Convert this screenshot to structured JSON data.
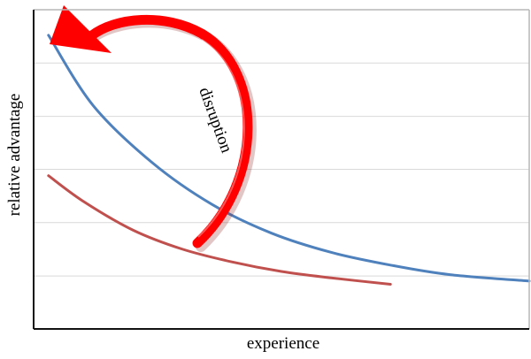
{
  "chart_data": {
    "type": "line",
    "xlabel": "experience",
    "ylabel": "relative advantage",
    "grid": true,
    "gridlines_y": [
      0.0,
      0.166,
      0.333,
      0.5,
      0.666,
      0.833,
      1.0
    ],
    "series": [
      {
        "color": "#4f81bd",
        "points": [
          [
            0.03,
            0.92
          ],
          [
            0.12,
            0.7
          ],
          [
            0.24,
            0.52
          ],
          [
            0.36,
            0.39
          ],
          [
            0.48,
            0.3
          ],
          [
            0.6,
            0.24
          ],
          [
            0.72,
            0.2
          ],
          [
            0.84,
            0.17
          ],
          [
            1.0,
            0.15
          ]
        ]
      },
      {
        "color": "#c0504d",
        "points": [
          [
            0.03,
            0.48
          ],
          [
            0.1,
            0.4
          ],
          [
            0.2,
            0.31
          ],
          [
            0.3,
            0.25
          ],
          [
            0.4,
            0.21
          ],
          [
            0.5,
            0.18
          ],
          [
            0.6,
            0.16
          ],
          [
            0.72,
            0.14
          ]
        ]
      }
    ],
    "annotations": [
      {
        "text": "disruption",
        "color": "#ff0000"
      }
    ]
  }
}
